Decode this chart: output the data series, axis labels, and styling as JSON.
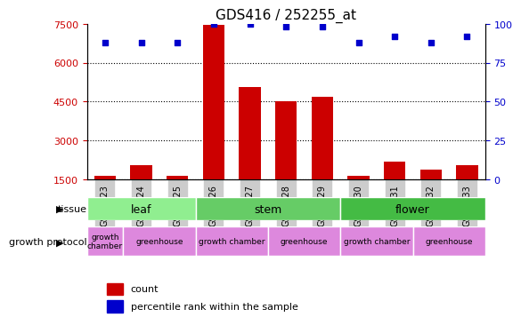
{
  "title": "GDS416 / 252255_at",
  "samples": [
    "GSM9223",
    "GSM9224",
    "GSM9225",
    "GSM9226",
    "GSM9227",
    "GSM9228",
    "GSM9229",
    "GSM9230",
    "GSM9231",
    "GSM9232",
    "GSM9233"
  ],
  "counts": [
    1650,
    2050,
    1650,
    7450,
    5050,
    4500,
    4700,
    1650,
    2200,
    1900,
    2050
  ],
  "percentiles": [
    88,
    88,
    88,
    100,
    100,
    98,
    98,
    88,
    92,
    88,
    92
  ],
  "ylim": [
    1500,
    7500
  ],
  "yticks": [
    1500,
    3000,
    4500,
    6000,
    7500
  ],
  "y2ticks": [
    0,
    25,
    50,
    75,
    100
  ],
  "bar_color": "#cc0000",
  "dot_color": "#0000cc",
  "bg_color": "#ffffff",
  "grid_color": "#000000",
  "tissue_groups": [
    {
      "label": "leaf",
      "start": 0,
      "end": 3,
      "color": "#90ee90"
    },
    {
      "label": "stem",
      "start": 3,
      "end": 7,
      "color": "#66cc66"
    },
    {
      "label": "flower",
      "start": 7,
      "end": 11,
      "color": "#44bb44"
    }
  ],
  "protocol_groups": [
    {
      "label": "growth\nchamber",
      "start": 0,
      "end": 1,
      "color": "#dd88dd"
    },
    {
      "label": "greenhouse",
      "start": 1,
      "end": 3,
      "color": "#dd88dd"
    },
    {
      "label": "growth chamber",
      "start": 3,
      "end": 7,
      "color": "#dd88dd"
    },
    {
      "label": "greenhouse",
      "start": 5,
      "end": 7,
      "color": "#dd88dd"
    },
    {
      "label": "growth chamber",
      "start": 7,
      "end": 9,
      "color": "#dd88dd"
    },
    {
      "label": "greenhouse",
      "start": 9,
      "end": 11,
      "color": "#dd88dd"
    }
  ],
  "tissue_label": "tissue",
  "protocol_label": "growth protocol",
  "legend_count": "count",
  "legend_pct": "percentile rank within the sample",
  "tick_bg": "#cccccc"
}
